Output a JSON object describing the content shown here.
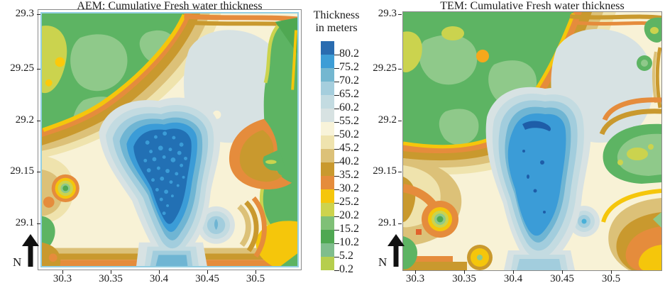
{
  "panels": {
    "aem": {
      "title": "AEM: Cumulative Fresh water thickness",
      "x_ticks": [
        "30.3",
        "30.35",
        "30.4",
        "30.45",
        "30.5"
      ],
      "y_ticks": [
        "29.3",
        "29.25",
        "29.2",
        "29.15",
        "29.1"
      ],
      "north_label": "N"
    },
    "tem": {
      "title": "TEM: Cumulative Fresh water thickness",
      "x_ticks": [
        "30.3",
        "30.35",
        "30.4",
        "30.45",
        "30.5"
      ],
      "y_ticks": [
        "29.3",
        "29.25",
        "29.2",
        "29.15",
        "29.1"
      ],
      "north_label": "N"
    }
  },
  "legend": {
    "title_line1": "Thickness",
    "title_line2": "in meters",
    "labels": [
      "80.2",
      "75.2",
      "70.2",
      "65.2",
      "60.2",
      "55.2",
      "50.2",
      "45.2",
      "40.2",
      "35.2",
      "30.2",
      "25.2",
      "20.2",
      "15.2",
      "10.2",
      "5.2",
      "0.2"
    ],
    "colors": [
      "#2a6cb0",
      "#3d9dd6",
      "#74b7d0",
      "#a5cedd",
      "#c3dbe1",
      "#d7e2e2",
      "#f8f3d9",
      "#efe3ae",
      "#dcc178",
      "#c9992e",
      "#e58c3c",
      "#f5c60b",
      "#cdd34d",
      "#7fc077",
      "#4fa852",
      "#7fbd8c",
      "#b6ce4d"
    ],
    "accent_map_deep_blue": "#2270b4",
    "accent_map_green": "#5db463"
  },
  "chart_data": [
    {
      "type": "heatmap",
      "subtype": "filled_contour_map",
      "title": "AEM: Cumulative Fresh water thickness",
      "x_ticks": [
        30.3,
        30.35,
        30.4,
        30.45,
        30.5
      ],
      "y_ticks": [
        29.3,
        29.25,
        29.2,
        29.15,
        29.1
      ],
      "x_range": [
        30.275,
        30.55
      ],
      "y_range": [
        29.05,
        29.305
      ],
      "colorbar_title": "Thickness in meters",
      "levels_m": [
        0.2,
        5.2,
        10.2,
        15.2,
        20.2,
        25.2,
        30.2,
        35.2,
        40.2,
        45.2,
        50.2,
        55.2,
        60.2,
        65.2,
        70.2,
        75.2,
        80.2
      ],
      "legend_position": "left of panel, shared",
      "grid": false,
      "features": [
        {
          "name": "deep freshwater body",
          "lon": 30.41,
          "lat": 29.17,
          "thickness_m": "75-80+",
          "note": "large irregular north-south body with many speckled pockets exceeding 80.2 m"
        },
        {
          "name": "northeast shallow lobe",
          "lon": 30.46,
          "lat": 29.26,
          "thickness_m": "55-60",
          "note": "smooth pale lobe ringed by 30-50 m orange/gold bands"
        },
        {
          "name": "southeast pocket",
          "lon": 30.44,
          "lat": 29.11,
          "thickness_m": "55-70",
          "note": "small concentric circular pocket"
        },
        {
          "name": "northwest background",
          "lon": 30.32,
          "lat": 29.27,
          "thickness_m": "10-20",
          "note": "green low-thickness region with 20-25 m patches"
        },
        {
          "name": "southwest bullseye",
          "lon": 30.29,
          "lat": 29.13,
          "thickness_m": "10-30",
          "note": "small concentric green/yellow target"
        }
      ]
    },
    {
      "type": "heatmap",
      "subtype": "filled_contour_map",
      "title": "TEM: Cumulative Fresh water thickness",
      "x_ticks": [
        30.3,
        30.35,
        30.4,
        30.45,
        30.5
      ],
      "y_ticks": [
        29.3,
        29.25,
        29.2,
        29.15,
        29.1
      ],
      "x_range": [
        30.275,
        30.55
      ],
      "y_range": [
        29.05,
        29.305
      ],
      "colorbar_title": "Thickness in meters",
      "levels_m": [
        0.2,
        5.2,
        10.2,
        15.2,
        20.2,
        25.2,
        30.2,
        35.2,
        40.2,
        45.2,
        50.2,
        55.2,
        60.2,
        65.2,
        70.2,
        75.2,
        80.2
      ],
      "legend_position": "left of panel, shared",
      "grid": false,
      "features": [
        {
          "name": "deep freshwater body",
          "lon": 30.41,
          "lat": 29.17,
          "thickness_m": "75-80",
          "note": "smoother north-south blue body with tiny pockets above 80.2 m"
        },
        {
          "name": "northeast shallow lobe",
          "lon": 30.46,
          "lat": 29.26,
          "thickness_m": "55-60",
          "note": "smooth pale lobe ringed by 30-50 m bands"
        },
        {
          "name": "southeast pocket",
          "lon": 30.45,
          "lat": 29.11,
          "thickness_m": "55-70",
          "note": "small concentric circular pocket"
        },
        {
          "name": "northwest background",
          "lon": 30.32,
          "lat": 29.27,
          "thickness_m": "10-20",
          "note": "green low-thickness region"
        },
        {
          "name": "southwest bullseye",
          "lon": 30.3,
          "lat": 29.1,
          "thickness_m": "5-30",
          "note": "concentric green/yellow/orange target with small deep-orange square nearby"
        }
      ]
    }
  ]
}
